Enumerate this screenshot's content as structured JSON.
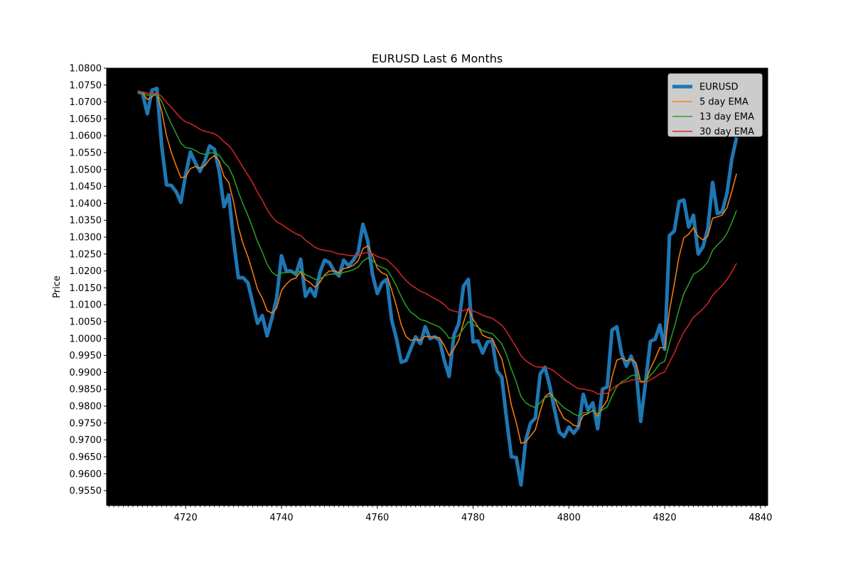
{
  "chart_data": {
    "type": "line",
    "title": "EURUSD Last 6 Months",
    "xlabel": "",
    "ylabel": "Price",
    "xlim": [
      4703.5,
      4841.5
    ],
    "ylim": [
      0.9506,
      1.08
    ],
    "xticks": [
      4720,
      4740,
      4760,
      4780,
      4800,
      4820,
      4840
    ],
    "yticks": [
      0.955,
      0.96,
      0.965,
      0.97,
      0.975,
      0.98,
      0.985,
      0.99,
      0.995,
      1.0,
      1.005,
      1.01,
      1.015,
      1.02,
      1.025,
      1.03,
      1.035,
      1.04,
      1.045,
      1.05,
      1.055,
      1.06,
      1.065,
      1.07,
      1.075,
      1.08
    ],
    "ytick_labels": [
      "0.9550",
      "0.9600",
      "0.9650",
      "0.9700",
      "0.9750",
      "0.9800",
      "0.9850",
      "0.9900",
      "0.9950",
      "1.0000",
      "1.0050",
      "1.0100",
      "1.0150",
      "1.0200",
      "1.0250",
      "1.0300",
      "1.0350",
      "1.0400",
      "1.0450",
      "1.0500",
      "1.0550",
      "1.0600",
      "1.0650",
      "1.0700",
      "1.0750",
      "1.0800"
    ],
    "grid": false,
    "legend_position": "top-right",
    "x": [
      4710,
      4711,
      4712,
      4713,
      4714,
      4715,
      4716,
      4717,
      4718,
      4719,
      4720,
      4721,
      4722,
      4723,
      4724,
      4725,
      4726,
      4727,
      4728,
      4729,
      4730,
      4731,
      4732,
      4733,
      4734,
      4735,
      4736,
      4737,
      4738,
      4739,
      4740,
      4741,
      4742,
      4743,
      4744,
      4745,
      4746,
      4747,
      4748,
      4749,
      4750,
      4751,
      4752,
      4753,
      4754,
      4755,
      4756,
      4757,
      4758,
      4759,
      4760,
      4761,
      4762,
      4763,
      4764,
      4765,
      4766,
      4767,
      4768,
      4769,
      4770,
      4771,
      4772,
      4773,
      4774,
      4775,
      4776,
      4777,
      4778,
      4779,
      4780,
      4781,
      4782,
      4783,
      4784,
      4785,
      4786,
      4787,
      4788,
      4789,
      4790,
      4791,
      4792,
      4793,
      4794,
      4795,
      4796,
      4797,
      4798,
      4799,
      4800,
      4801,
      4802,
      4803,
      4804,
      4805,
      4806,
      4807,
      4808,
      4809,
      4810,
      4811,
      4812,
      4813,
      4814,
      4815,
      4816,
      4817,
      4818,
      4819,
      4820,
      4821,
      4822,
      4823,
      4824,
      4825,
      4826,
      4827,
      4828,
      4829,
      4830,
      4831,
      4832,
      4833,
      4834,
      4835
    ],
    "series": [
      {
        "name": "EURUSD",
        "color": "#1f77b4",
        "values": [
          1.073,
          1.0725,
          1.0665,
          1.0735,
          1.074,
          1.057,
          1.0455,
          1.0453,
          1.0435,
          1.0403,
          1.0485,
          1.0552,
          1.052,
          1.0495,
          1.0525,
          1.057,
          1.056,
          1.0495,
          1.039,
          1.0425,
          1.029,
          1.018,
          1.018,
          1.0165,
          1.0105,
          1.0045,
          1.0068,
          1.0008,
          1.006,
          1.012,
          1.0245,
          1.02,
          1.02,
          1.019,
          1.0235,
          1.0125,
          1.0148,
          1.0125,
          1.0195,
          1.0232,
          1.0225,
          1.02,
          1.0185,
          1.0232,
          1.0215,
          1.0232,
          1.0255,
          1.0338,
          1.029,
          1.019,
          1.0133,
          1.0165,
          1.0175,
          1.0055,
          1.0,
          0.993,
          0.9935,
          0.997,
          1.0005,
          0.9985,
          1.0035,
          1.0,
          1.0005,
          0.9995,
          0.9935,
          0.9888,
          1.001,
          1.0045,
          1.0155,
          1.0175,
          0.999,
          0.9993,
          0.9957,
          0.999,
          0.9993,
          0.9905,
          0.9885,
          0.976,
          0.965,
          0.9648,
          0.9567,
          0.97,
          0.975,
          0.9765,
          0.9895,
          0.9915,
          0.986,
          0.979,
          0.9723,
          0.971,
          0.9738,
          0.972,
          0.9738,
          0.9835,
          0.9788,
          0.981,
          0.9733,
          0.985,
          0.9857,
          1.0025,
          1.0035,
          0.9955,
          0.9918,
          0.9948,
          0.991,
          0.9755,
          0.987,
          0.9992,
          0.9998,
          1.004,
          0.9968,
          1.0305,
          1.0318,
          1.0405,
          1.041,
          1.033,
          1.0365,
          1.025,
          1.0272,
          1.0325,
          1.0462,
          1.037,
          1.0375,
          1.043,
          1.053,
          1.0595
        ]
      },
      {
        "name": "5 day EMA",
        "color": "#ff7f0e",
        "values": [
          1.073,
          1.0728,
          1.0707,
          1.0716,
          1.0724,
          1.0673,
          1.06,
          1.0551,
          1.0512,
          1.0476,
          1.0479,
          1.0503,
          1.0509,
          1.0504,
          1.0511,
          1.0531,
          1.0541,
          1.0525,
          1.048,
          1.0462,
          1.0405,
          1.033,
          1.028,
          1.0242,
          1.0196,
          1.0146,
          1.012,
          1.0083,
          1.0075,
          1.009,
          1.0142,
          1.0161,
          1.0174,
          1.0179,
          1.0198,
          1.0174,
          1.0165,
          1.0152,
          1.0166,
          1.0188,
          1.02,
          1.02,
          1.0195,
          1.0207,
          1.021,
          1.0217,
          1.023,
          1.0266,
          1.0274,
          1.0246,
          1.0208,
          1.0194,
          1.0188,
          1.0144,
          1.0096,
          1.0041,
          1.0006,
          0.9994,
          0.9998,
          0.9994,
          1.0007,
          1.0005,
          1.0005,
          1.0002,
          0.9979,
          0.9949,
          0.9969,
          0.9995,
          1.0048,
          1.009,
          1.0057,
          1.0036,
          1.001,
          1.0003,
          1.0,
          0.9968,
          0.994,
          0.988,
          0.9803,
          0.9752,
          0.969,
          0.9694,
          0.9712,
          0.973,
          0.9785,
          0.9828,
          0.9839,
          0.9823,
          0.9789,
          0.9763,
          0.9755,
          0.9743,
          0.9741,
          0.9773,
          0.9778,
          0.9788,
          0.977,
          0.9797,
          0.9817,
          0.9886,
          0.9936,
          0.9942,
          0.9934,
          0.9939,
          0.9929,
          0.9871,
          0.9871,
          0.9911,
          0.994,
          0.9974,
          0.9972,
          1.0083,
          1.0161,
          1.0243,
          1.0298,
          1.0309,
          1.0328,
          1.0302,
          1.0292,
          1.0303,
          1.0356,
          1.036,
          1.0365,
          1.0387,
          1.0435,
          1.0488
        ]
      },
      {
        "name": "13 day EMA",
        "color": "#2ca02c",
        "values": [
          1.073,
          1.0729,
          1.072,
          1.0722,
          1.0724,
          1.0702,
          1.0667,
          1.0636,
          1.0607,
          1.0578,
          1.0565,
          1.0563,
          1.0557,
          1.0548,
          1.0545,
          1.0549,
          1.055,
          1.0543,
          1.0521,
          1.0507,
          1.0476,
          1.0434,
          1.0397,
          1.0364,
          1.0327,
          1.0287,
          1.0256,
          1.022,
          1.0197,
          1.0186,
          1.0194,
          1.0195,
          1.0196,
          1.0195,
          1.02,
          1.0189,
          1.0183,
          1.0175,
          1.0177,
          1.0185,
          1.019,
          1.0191,
          1.019,
          1.0196,
          1.0199,
          1.0204,
          1.0211,
          1.0229,
          1.0238,
          1.0231,
          1.0217,
          1.021,
          1.0204,
          1.0182,
          1.0156,
          1.0124,
          1.0097,
          1.0078,
          1.0068,
          1.0056,
          1.0053,
          1.0046,
          1.004,
          1.0034,
          1.002,
          1.0001,
          1.0003,
          1.0009,
          1.003,
          1.005,
          1.0041,
          1.0034,
          1.0023,
          1.0018,
          1.0015,
          1.0,
          0.9984,
          0.9952,
          0.9909,
          0.9872,
          0.9828,
          0.981,
          0.9801,
          0.9796,
          0.981,
          0.9825,
          0.983,
          0.9824,
          0.9809,
          0.9795,
          0.9787,
          0.9777,
          0.9771,
          0.978,
          0.9781,
          0.9785,
          0.9778,
          0.9789,
          0.9798,
          0.9829,
          0.9858,
          0.9872,
          0.9879,
          0.989,
          0.9893,
          0.9874,
          0.9874,
          0.9891,
          0.9907,
          0.9926,
          0.9932,
          0.9986,
          1.0034,
          1.0087,
          1.0133,
          1.0161,
          1.019,
          1.0199,
          1.021,
          1.0227,
          1.0261,
          1.0277,
          1.0291,
          1.0311,
          1.0343,
          1.0379
        ]
      },
      {
        "name": "30 day EMA",
        "color": "#d62728",
        "values": [
          1.073,
          1.073,
          1.0726,
          1.0726,
          1.0727,
          1.0716,
          1.0699,
          1.0684,
          1.0668,
          1.0652,
          1.0641,
          1.0636,
          1.0628,
          1.0619,
          1.0613,
          1.061,
          1.0606,
          1.0597,
          1.0582,
          1.0571,
          1.0553,
          1.0529,
          1.0506,
          1.0484,
          1.046,
          1.0433,
          1.0409,
          1.0382,
          1.0361,
          1.0345,
          1.0338,
          1.0328,
          1.0319,
          1.031,
          1.0305,
          1.0291,
          1.0281,
          1.027,
          1.0264,
          1.0261,
          1.0259,
          1.0255,
          1.025,
          1.0249,
          1.0246,
          1.0245,
          1.0246,
          1.0252,
          1.0255,
          1.0251,
          1.0243,
          1.0238,
          1.0234,
          1.022,
          1.0206,
          1.0188,
          1.0172,
          1.0159,
          1.015,
          1.014,
          1.0135,
          1.0126,
          1.0118,
          1.0111,
          1.01,
          1.0086,
          1.0081,
          1.0078,
          1.0083,
          1.0088,
          1.0082,
          1.0076,
          1.0069,
          1.0064,
          1.006,
          1.005,
          1.004,
          1.0021,
          0.9997,
          0.9975,
          0.9949,
          0.9935,
          0.9925,
          0.9917,
          0.9915,
          0.9915,
          0.9911,
          0.9903,
          0.9891,
          0.9879,
          0.987,
          0.986,
          0.9852,
          0.9851,
          0.9847,
          0.9845,
          0.9836,
          0.9837,
          0.9838,
          0.985,
          0.9862,
          0.9868,
          0.9872,
          0.9877,
          0.9879,
          0.987,
          0.987,
          0.9878,
          0.9886,
          0.9896,
          0.9901,
          0.993,
          0.9957,
          0.999,
          1.0019,
          1.004,
          1.0063,
          1.0075,
          1.0088,
          1.0104,
          1.0128,
          1.0143,
          1.0157,
          1.0174,
          1.0197,
          1.0223
        ]
      }
    ]
  }
}
